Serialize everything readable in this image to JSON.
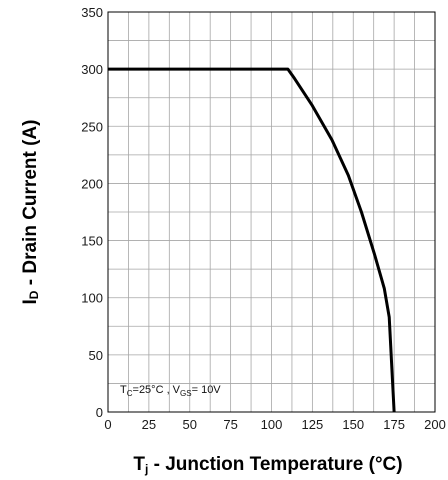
{
  "chart_data": {
    "type": "line",
    "xlabel": "Tj - Junction Temperature (°C)",
    "ylabel": "ID - Drain Current (A)",
    "xlim": [
      0,
      200
    ],
    "ylim": [
      0,
      350
    ],
    "x_ticks": [
      "0",
      "25",
      "50",
      "75",
      "100",
      "125",
      "150",
      "175",
      "200"
    ],
    "y_ticks": [
      "0",
      "50",
      "100",
      "150",
      "200",
      "250",
      "300",
      "350"
    ],
    "grid": true,
    "annotation": "TC=25°C , VGS= 10V",
    "series": [
      {
        "x": [
          0,
          110,
          114,
          125,
          137,
          147,
          155,
          163,
          169,
          172,
          175
        ],
        "y": [
          300,
          300,
          292,
          268,
          238,
          207,
          175,
          138,
          108,
          83,
          0
        ]
      }
    ]
  }
}
